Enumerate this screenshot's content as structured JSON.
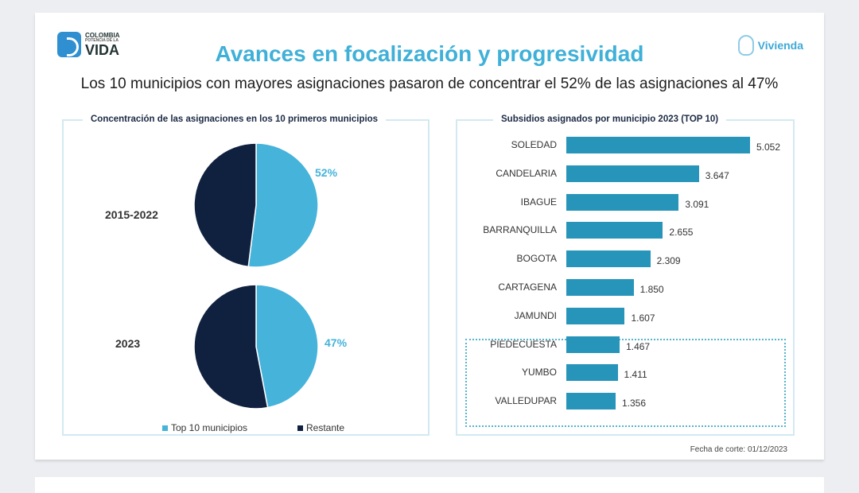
{
  "header": {
    "logo_left": [
      "COLOMBIA",
      "POTENCIA DE LA",
      "VIDA"
    ],
    "logo_right": "Vivienda",
    "title": "Avances en focalización y progresividad",
    "subtitle": "Los 10 municipios con mayores asignaciones pasaron de concentrar el 52% de las asignaciones al 47%"
  },
  "chart_data": [
    {
      "type": "pie",
      "title": "Concentración de las asignaciones en los 10 primeros municipios",
      "pies": [
        {
          "label": "2015-2022",
          "values": [
            52,
            48
          ],
          "data_label": "52%"
        },
        {
          "label": "2023",
          "values": [
            47,
            53
          ],
          "data_label": "47%"
        }
      ],
      "legend": [
        "Top 10 municipios",
        "Restante"
      ],
      "colors": [
        "#45b3da",
        "#10213f"
      ],
      "legend_placement": "bottom"
    },
    {
      "type": "bar",
      "orientation": "horizontal",
      "title": "Subsidios asignados por municipio 2023 (TOP 10)",
      "categories": [
        "SOLEDAD",
        "CANDELARIA",
        "IBAGUE",
        "BARRANQUILLA",
        "BOGOTA",
        "CARTAGENA",
        "JAMUNDI",
        "PIEDECUESTA",
        "YUMBO",
        "VALLEDUPAR"
      ],
      "values": [
        5052,
        3647,
        3091,
        2655,
        2309,
        1850,
        1607,
        1467,
        1411,
        1356
      ],
      "value_labels": [
        "5.052",
        "3.647",
        "3.091",
        "2.655",
        "2.309",
        "1.850",
        "1.607",
        "1.467",
        "1.411",
        "1.356"
      ],
      "highlighted": [
        "PIEDECUESTA",
        "YUMBO",
        "VALLEDUPAR"
      ],
      "color": "#2795ba"
    }
  ],
  "footer": "Fecha de corte: 01/12/2023"
}
